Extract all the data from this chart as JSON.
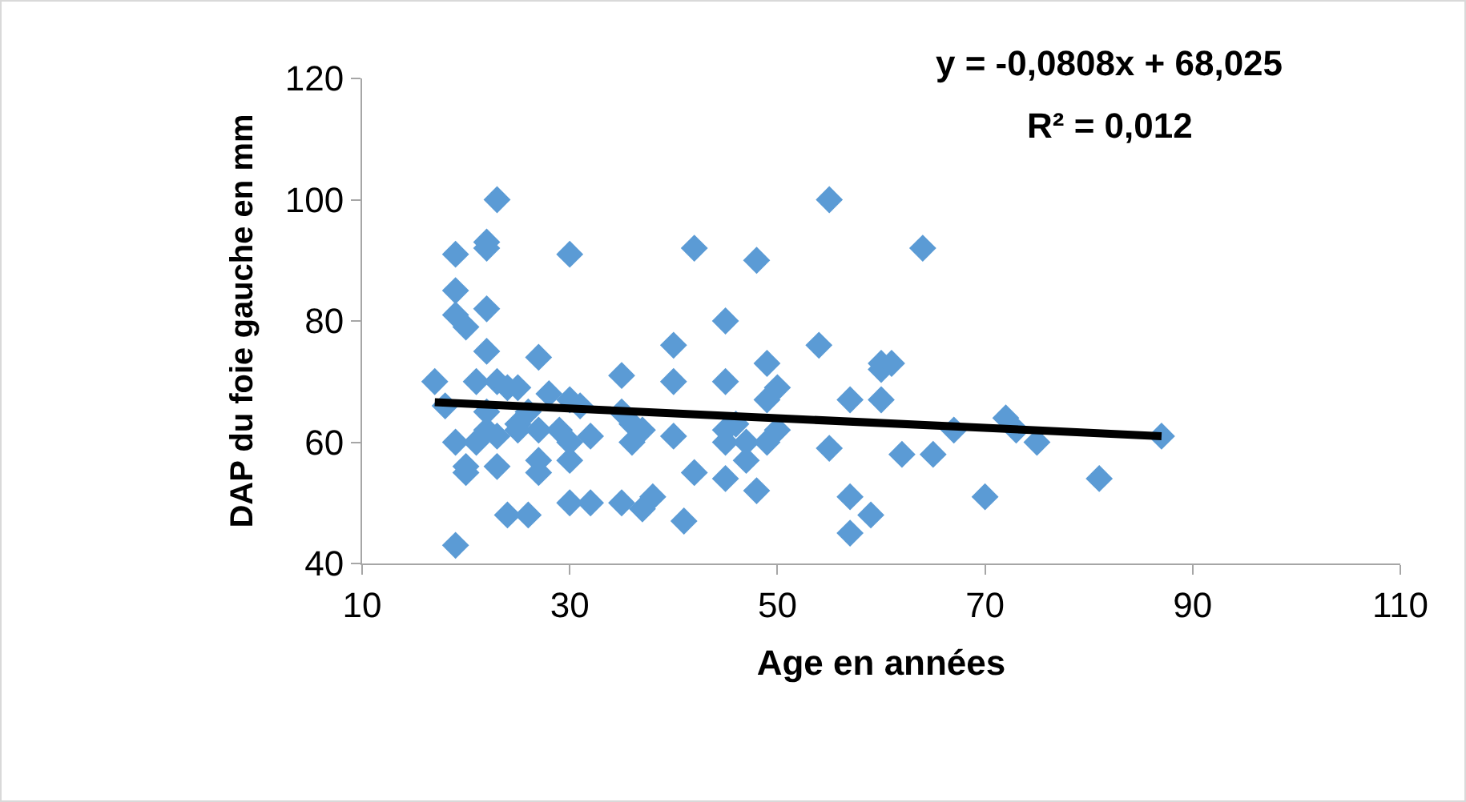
{
  "chart_data": {
    "type": "scatter",
    "xlabel": "Age en années",
    "ylabel": "DAP du foie gauche en mm",
    "annotations": [
      "y = -0,0808x + 68,025",
      "R² = 0,012"
    ],
    "xlim": [
      10,
      110
    ],
    "xticks": [
      10,
      30,
      50,
      70,
      90,
      110
    ],
    "ylim": [
      40,
      120
    ],
    "yticks": [
      40,
      60,
      80,
      100,
      120
    ],
    "grid": false,
    "marker": "diamond",
    "series": [
      {
        "color": "#5b9bd5",
        "x": [
          17,
          18,
          19,
          19,
          19,
          19,
          19,
          20,
          20,
          20,
          21,
          21,
          22,
          22,
          22,
          22,
          22,
          22,
          23,
          23,
          23,
          23,
          24,
          24,
          25,
          25,
          25,
          26,
          26,
          27,
          27,
          27,
          27,
          28,
          29,
          30,
          30,
          30,
          30,
          30,
          31,
          32,
          32,
          35,
          35,
          35,
          36,
          36,
          37,
          37,
          38,
          40,
          40,
          40,
          41,
          42,
          42,
          45,
          45,
          45,
          45,
          45,
          46,
          47,
          47,
          48,
          48,
          49,
          49,
          49,
          50,
          50,
          54,
          55,
          55,
          57,
          57,
          57,
          59,
          60,
          60,
          60,
          61,
          62,
          64,
          65,
          67,
          70,
          72,
          73,
          75,
          81,
          87
        ],
        "values": [
          70,
          66,
          91,
          85,
          81,
          60,
          43,
          79,
          56,
          55,
          70,
          60,
          93,
          92,
          82,
          75,
          62,
          65,
          100,
          70,
          61,
          56,
          48,
          69,
          63,
          62,
          69,
          48,
          65,
          74,
          62,
          57,
          55,
          68,
          62,
          91,
          67,
          60,
          57,
          50,
          66,
          61,
          50,
          71,
          65,
          50,
          63,
          60,
          62,
          49,
          51,
          76,
          70,
          61,
          47,
          92,
          55,
          80,
          70,
          62,
          60,
          54,
          63,
          60,
          57,
          90,
          52,
          73,
          67,
          60,
          69,
          62,
          76,
          100,
          59,
          67,
          51,
          45,
          48,
          73,
          72,
          67,
          73,
          58,
          92,
          58,
          62,
          51,
          64,
          62,
          60,
          54,
          61
        ]
      },
      {
        "type": "line",
        "color": "#000000",
        "marker": "none",
        "line_style": "solid",
        "x": [
          17,
          87
        ],
        "values": [
          66.6,
          61.0
        ]
      }
    ]
  }
}
